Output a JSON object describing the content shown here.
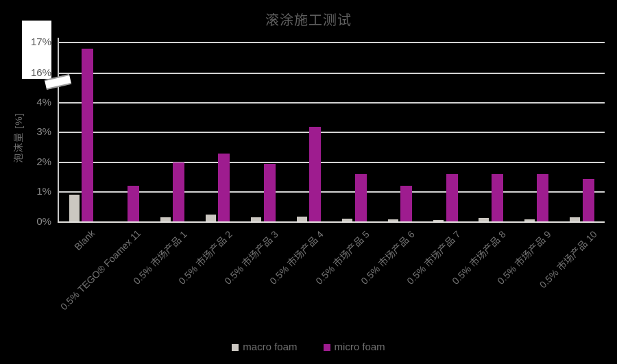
{
  "chart_data": {
    "type": "bar",
    "title": "滚涂施工测试",
    "xlabel": "",
    "ylabel": "泡沫量 [%]",
    "categories": [
      "Blank",
      "0.5% TEGO® Foamex 11",
      "0.5% 市场产品 1",
      "0.5% 市场产品 2",
      "0.5% 市场产品 3",
      "0.5% 市场产品 4",
      "0.5% 市场产品 5",
      "0.5% 市场产品 6",
      "0.5% 市场产品 7",
      "0.5% 市场产品 8",
      "0.5% 市场产品 9",
      "0.5% 市场产品 10"
    ],
    "series": [
      {
        "name": "macro foam",
        "color": "#CBC7C1",
        "values": [
          0.9,
          0,
          0.15,
          0.25,
          0.15,
          0.17,
          0.1,
          0.07,
          0.05,
          0.12,
          0.08,
          0.15
        ]
      },
      {
        "name": "micro foam",
        "color": "#9E1C8F",
        "values": [
          16.8,
          1.2,
          2.0,
          2.3,
          1.95,
          3.2,
          1.6,
          1.2,
          1.6,
          1.6,
          1.6,
          1.45
        ]
      }
    ],
    "y_axis": {
      "ticks": [
        0,
        1,
        2,
        3,
        4,
        16,
        17
      ],
      "tick_labels": [
        "0%",
        "1%",
        "2%",
        "3%",
        "4%",
        "16%",
        "17%"
      ],
      "broken_axis": true,
      "break_between": [
        4,
        16
      ],
      "grid": true
    },
    "legend_position": "bottom",
    "background": "#000000"
  }
}
